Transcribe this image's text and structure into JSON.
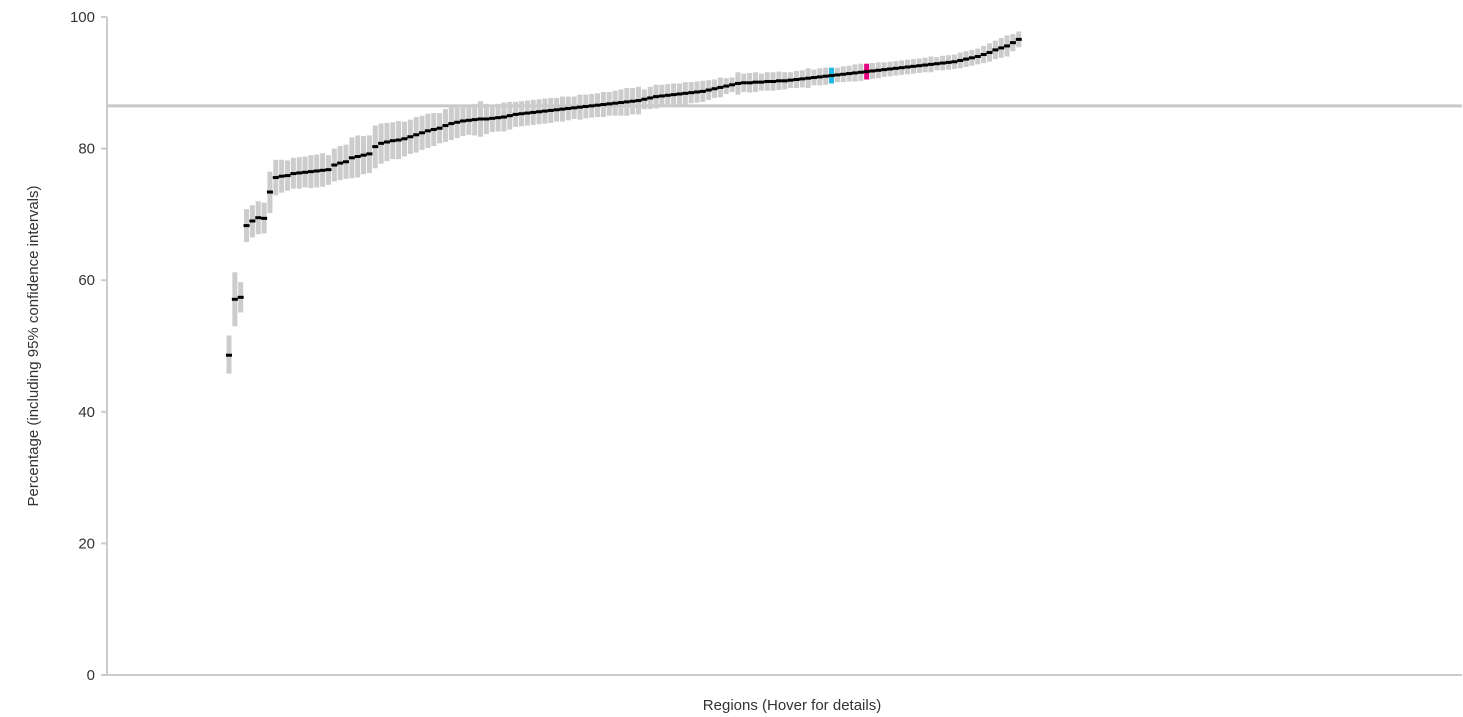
{
  "chart_data": {
    "type": "scatter",
    "xlabel": "Regions (Hover for details)",
    "ylabel": "Percentage (including 95% confidence intervals)",
    "ylim": [
      0,
      100
    ],
    "yticks": [
      0,
      20,
      40,
      60,
      80,
      100
    ],
    "reference_line": 86.5,
    "grid": false,
    "colors": {
      "point": "#000000",
      "ci": "#cccccc",
      "axis": "#cccccc",
      "reference": "#c8c8c8",
      "highlight_cyan": "#1fb7e6",
      "highlight_magenta": "#e6007e"
    },
    "highlights": {
      "cyan_index": 103,
      "magenta_index": 109
    },
    "series": [
      {
        "values": [
          48.6,
          57.1,
          57.4,
          68.3,
          69.0,
          69.5,
          69.4,
          73.4,
          75.6,
          75.8,
          75.9,
          76.2,
          76.3,
          76.4,
          76.5,
          76.6,
          76.7,
          76.8,
          77.5,
          77.8,
          78.0,
          78.6,
          78.8,
          79.0,
          79.2,
          80.3,
          80.8,
          81.0,
          81.2,
          81.3,
          81.5,
          81.8,
          82.1,
          82.4,
          82.7,
          82.9,
          83.1,
          83.5,
          83.8,
          84.0,
          84.2,
          84.3,
          84.4,
          84.5,
          84.5,
          84.6,
          84.7,
          84.8,
          85.0,
          85.2,
          85.3,
          85.4,
          85.5,
          85.6,
          85.7,
          85.8,
          85.9,
          86.0,
          86.1,
          86.2,
          86.3,
          86.4,
          86.5,
          86.6,
          86.7,
          86.8,
          86.9,
          87.0,
          87.1,
          87.2,
          87.3,
          87.5,
          87.7,
          87.9,
          88.0,
          88.1,
          88.2,
          88.3,
          88.4,
          88.5,
          88.6,
          88.7,
          88.9,
          89.1,
          89.3,
          89.5,
          89.7,
          89.9,
          90.0,
          90.0,
          90.1,
          90.1,
          90.2,
          90.2,
          90.3,
          90.3,
          90.4,
          90.5,
          90.6,
          90.7,
          90.8,
          90.9,
          91.0,
          91.1,
          91.2,
          91.3,
          91.4,
          91.5,
          91.6,
          91.7,
          91.8,
          91.9,
          92.0,
          92.1,
          92.2,
          92.3,
          92.4,
          92.5,
          92.6,
          92.7,
          92.8,
          92.9,
          93.0,
          93.1,
          93.2,
          93.4,
          93.6,
          93.8,
          94.0,
          94.3,
          94.6,
          95.0,
          95.3,
          95.6,
          96.1,
          96.6
        ],
        "lower": [
          45.8,
          53.0,
          55.1,
          65.8,
          66.5,
          67.0,
          67.1,
          70.2,
          72.9,
          73.3,
          73.6,
          73.9,
          73.9,
          74.1,
          74.0,
          74.1,
          74.2,
          74.5,
          75.0,
          75.2,
          75.4,
          75.5,
          75.6,
          76.1,
          76.3,
          77.0,
          77.7,
          78.1,
          78.4,
          78.4,
          78.8,
          79.2,
          79.4,
          79.8,
          80.1,
          80.4,
          80.8,
          81.0,
          81.3,
          81.6,
          81.9,
          82.1,
          82.0,
          81.8,
          82.2,
          82.5,
          82.6,
          82.6,
          82.9,
          83.3,
          83.4,
          83.5,
          83.6,
          83.7,
          83.8,
          83.9,
          84.1,
          84.1,
          84.3,
          84.5,
          84.4,
          84.6,
          84.7,
          84.8,
          84.8,
          85.0,
          85.0,
          85.0,
          85.0,
          85.2,
          85.2,
          86.0,
          86.0,
          86.1,
          86.3,
          86.4,
          86.5,
          86.7,
          86.7,
          86.9,
          87.0,
          87.1,
          87.4,
          87.7,
          87.8,
          88.3,
          88.6,
          88.2,
          88.6,
          88.5,
          88.6,
          88.8,
          88.8,
          88.8,
          88.9,
          89.0,
          89.2,
          89.2,
          89.3,
          89.2,
          89.6,
          89.6,
          89.7,
          89.9,
          90.1,
          90.1,
          90.2,
          90.2,
          90.3,
          90.5,
          90.6,
          90.7,
          90.9,
          91.0,
          91.1,
          91.2,
          91.3,
          91.4,
          91.5,
          91.6,
          91.6,
          91.9,
          91.9,
          92.0,
          92.1,
          92.2,
          92.4,
          92.6,
          92.8,
          93.0,
          93.2,
          93.6,
          93.8,
          94.0,
          94.8,
          95.4
        ],
        "upper": [
          51.6,
          61.2,
          59.7,
          70.8,
          71.4,
          72.0,
          71.8,
          76.5,
          78.3,
          78.3,
          78.2,
          78.6,
          78.7,
          78.8,
          79.0,
          79.1,
          79.3,
          79.0,
          80.0,
          80.4,
          80.6,
          81.7,
          82.0,
          81.9,
          82.0,
          83.5,
          83.8,
          83.9,
          84.0,
          84.2,
          84.1,
          84.4,
          84.8,
          85.0,
          85.3,
          85.4,
          85.4,
          86.0,
          86.3,
          86.4,
          86.5,
          86.5,
          86.8,
          87.2,
          86.8,
          86.7,
          86.8,
          87.0,
          87.1,
          87.1,
          87.2,
          87.3,
          87.4,
          87.5,
          87.6,
          87.7,
          87.7,
          87.9,
          87.9,
          87.9,
          88.2,
          88.2,
          88.3,
          88.4,
          88.6,
          88.6,
          88.8,
          89.0,
          89.2,
          89.2,
          89.4,
          89.0,
          89.4,
          89.7,
          89.7,
          89.8,
          89.9,
          89.9,
          90.1,
          90.1,
          90.2,
          90.3,
          90.4,
          90.5,
          90.8,
          90.7,
          90.8,
          91.6,
          91.4,
          91.5,
          91.6,
          91.4,
          91.6,
          91.6,
          91.7,
          91.6,
          91.6,
          91.8,
          91.9,
          92.2,
          92.0,
          92.2,
          92.3,
          92.3,
          92.3,
          92.5,
          92.6,
          92.8,
          92.9,
          92.9,
          93.0,
          93.1,
          93.1,
          93.2,
          93.3,
          93.4,
          93.5,
          93.6,
          93.7,
          93.8,
          94.0,
          93.9,
          94.1,
          94.2,
          94.3,
          94.6,
          94.8,
          95.0,
          95.2,
          95.6,
          96.0,
          96.4,
          96.8,
          97.2,
          97.4,
          97.8
        ]
      }
    ]
  }
}
